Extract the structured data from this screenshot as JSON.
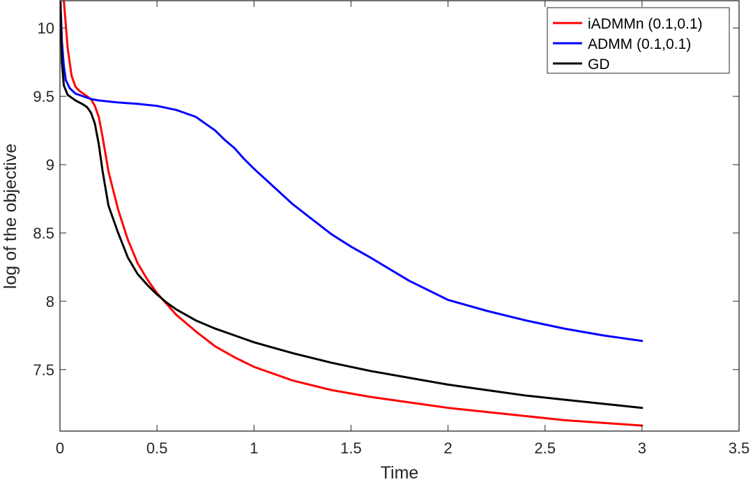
{
  "chart_data": {
    "type": "line",
    "title": "",
    "xlabel": "Time",
    "ylabel": "log of the objective",
    "xlim": [
      0,
      3.5
    ],
    "ylim": [
      7.05,
      10.2
    ],
    "xticks": [
      0,
      0.5,
      1,
      1.5,
      2,
      2.5,
      3,
      3.5
    ],
    "xtick_labels": [
      "0",
      "0.5",
      "1",
      "1.5",
      "2",
      "2.5",
      "3",
      "3.5"
    ],
    "yticks": [
      7.5,
      8,
      8.5,
      9,
      9.5,
      10
    ],
    "ytick_labels": [
      "7.5",
      "8",
      "8.5",
      "9",
      "9.5",
      "10"
    ],
    "grid": false,
    "box": true,
    "legend_position": "top-right",
    "series": [
      {
        "name": "iADMMn (0.1,0.1)",
        "color": "#ff0000",
        "x": [
          0,
          0.02,
          0.04,
          0.06,
          0.08,
          0.1,
          0.12,
          0.14,
          0.16,
          0.18,
          0.2,
          0.22,
          0.25,
          0.3,
          0.35,
          0.4,
          0.45,
          0.5,
          0.55,
          0.6,
          0.7,
          0.8,
          0.9,
          1.0,
          1.2,
          1.4,
          1.6,
          1.8,
          2.0,
          2.2,
          2.4,
          2.6,
          2.8,
          3.0
        ],
        "y": [
          10.3,
          10.2,
          9.85,
          9.65,
          9.57,
          9.54,
          9.52,
          9.5,
          9.48,
          9.43,
          9.35,
          9.2,
          8.95,
          8.67,
          8.45,
          8.28,
          8.16,
          8.06,
          7.98,
          7.9,
          7.78,
          7.67,
          7.59,
          7.52,
          7.42,
          7.35,
          7.3,
          7.26,
          7.22,
          7.19,
          7.16,
          7.13,
          7.11,
          7.09
        ]
      },
      {
        "name": "ADMM (0.1,0.1)",
        "color": "#0000ff",
        "x": [
          0,
          0.01,
          0.02,
          0.03,
          0.05,
          0.08,
          0.12,
          0.16,
          0.2,
          0.3,
          0.4,
          0.5,
          0.6,
          0.7,
          0.75,
          0.8,
          0.85,
          0.9,
          0.95,
          1.0,
          1.1,
          1.2,
          1.3,
          1.4,
          1.5,
          1.6,
          1.8,
          2.0,
          2.2,
          2.4,
          2.6,
          2.8,
          3.0
        ],
        "y": [
          10.3,
          9.9,
          9.72,
          9.62,
          9.56,
          9.52,
          9.5,
          9.48,
          9.47,
          9.455,
          9.445,
          9.43,
          9.4,
          9.35,
          9.3,
          9.25,
          9.18,
          9.12,
          9.04,
          8.97,
          8.84,
          8.71,
          8.6,
          8.49,
          8.4,
          8.32,
          8.15,
          8.01,
          7.93,
          7.86,
          7.8,
          7.75,
          7.71
        ]
      },
      {
        "name": "GD",
        "color": "#000000",
        "x": [
          0,
          0.01,
          0.02,
          0.04,
          0.06,
          0.08,
          0.1,
          0.12,
          0.14,
          0.16,
          0.18,
          0.2,
          0.22,
          0.25,
          0.3,
          0.35,
          0.4,
          0.45,
          0.5,
          0.55,
          0.6,
          0.7,
          0.8,
          0.9,
          1.0,
          1.2,
          1.4,
          1.6,
          1.8,
          2.0,
          2.2,
          2.4,
          2.6,
          2.8,
          3.0
        ],
        "y": [
          10.3,
          9.75,
          9.58,
          9.51,
          9.49,
          9.47,
          9.455,
          9.44,
          9.42,
          9.38,
          9.3,
          9.15,
          8.95,
          8.7,
          8.5,
          8.32,
          8.2,
          8.12,
          8.05,
          7.99,
          7.94,
          7.86,
          7.8,
          7.75,
          7.7,
          7.62,
          7.55,
          7.49,
          7.44,
          7.39,
          7.35,
          7.31,
          7.28,
          7.25,
          7.22
        ]
      }
    ]
  }
}
